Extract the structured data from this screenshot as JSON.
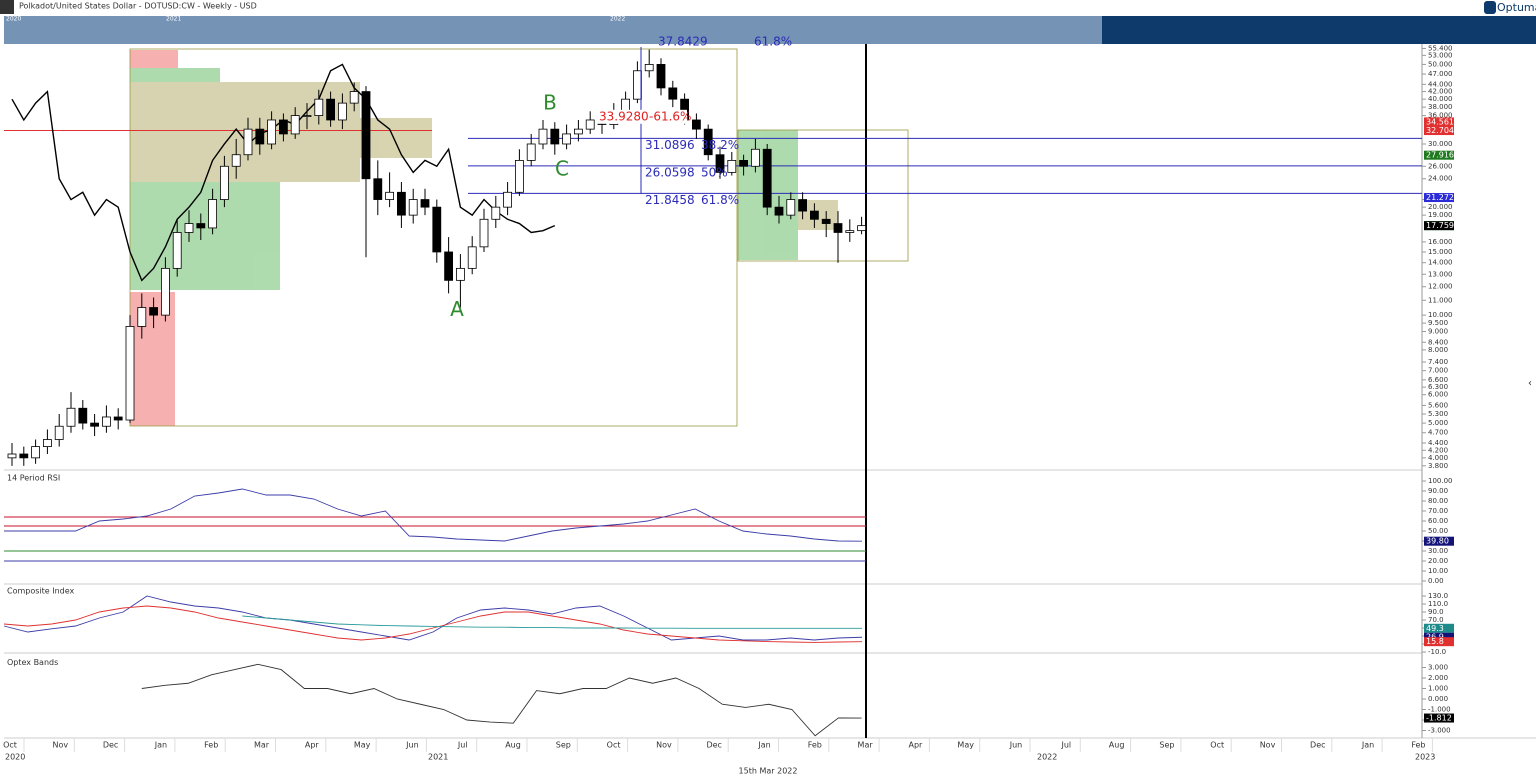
{
  "header": {
    "title": "Polkadot/United States Dollar - DOTUSD:CW - Weekly - USD",
    "brand": "Optuma",
    "navigator_years": [
      "2020",
      "2021",
      "2022"
    ]
  },
  "time_axis": {
    "months": [
      "Oct",
      "Nov",
      "Dec",
      "Jan",
      "Feb",
      "Mar",
      "Apr",
      "May",
      "Jun",
      "Jul",
      "Aug",
      "Sep",
      "Oct",
      "Nov",
      "Dec",
      "Jan",
      "Feb",
      "Mar",
      "Apr",
      "May",
      "Jun",
      "Jul",
      "Aug",
      "Sep",
      "Oct",
      "Nov",
      "Dec",
      "Jan",
      "Feb"
    ],
    "years": [
      "2020",
      "2021",
      "2022",
      "2023"
    ],
    "cursor_date": "15th Mar 2022"
  },
  "chart_data": [
    {
      "type": "candlestick",
      "log_scale": true,
      "ylim": [
        3.7,
        57
      ],
      "yticks": [
        {
          "value": 55.4,
          "label": "55.400"
        },
        {
          "value": 53,
          "label": "53.000"
        },
        {
          "value": 50,
          "label": "50.000"
        },
        {
          "value": 47,
          "label": "47.000"
        },
        {
          "value": 44,
          "label": "44.000"
        },
        {
          "value": 42,
          "label": "42.000"
        },
        {
          "value": 40,
          "label": "40.000"
        },
        {
          "value": 38,
          "label": "38.000"
        },
        {
          "value": 36,
          "label": "36.000"
        },
        {
          "value": 30,
          "label": "30.000"
        },
        {
          "value": 26,
          "label": "26.000"
        },
        {
          "value": 24,
          "label": "24.000"
        },
        {
          "value": 21,
          "label": "21.000"
        },
        {
          "value": 20,
          "label": "20.000"
        },
        {
          "value": 19,
          "label": "19.000"
        },
        {
          "value": 16,
          "label": "16.000"
        },
        {
          "value": 15,
          "label": "15.000"
        },
        {
          "value": 14,
          "label": "14.000"
        },
        {
          "value": 13,
          "label": "13.000"
        },
        {
          "value": 12,
          "label": "12.000"
        },
        {
          "value": 11,
          "label": "11.000"
        },
        {
          "value": 10,
          "label": "10.000"
        },
        {
          "value": 9.5,
          "label": "9.500"
        },
        {
          "value": 9,
          "label": "9.000"
        },
        {
          "value": 8.4,
          "label": "8.400"
        },
        {
          "value": 8,
          "label": "8.000"
        },
        {
          "value": 7.4,
          "label": "7.400"
        },
        {
          "value": 7,
          "label": "7.000"
        },
        {
          "value": 6.6,
          "label": "6.600"
        },
        {
          "value": 6.3,
          "label": "6.300"
        },
        {
          "value": 6,
          "label": "6.000"
        },
        {
          "value": 5.6,
          "label": "5.600"
        },
        {
          "value": 5.3,
          "label": "5.300"
        },
        {
          "value": 5,
          "label": "5.000"
        },
        {
          "value": 4.7,
          "label": "4.700"
        },
        {
          "value": 4.4,
          "label": "4.400"
        },
        {
          "value": 4.2,
          "label": "4.200"
        },
        {
          "value": 4,
          "label": "4.000"
        },
        {
          "value": 3.8,
          "label": "3.800"
        }
      ],
      "open": [
        4.0,
        4.1,
        4.0,
        4.3,
        4.5,
        4.9,
        5.5,
        5.0,
        4.9,
        5.2,
        5.1,
        9.3,
        10.5,
        10.0,
        13.5,
        17.0,
        18.0,
        17.5,
        21.0,
        26.0,
        28.0,
        33.0,
        30.0,
        35.0,
        32.0,
        36.0,
        36.0,
        40.0,
        35.0,
        39.0,
        42.0,
        24.0,
        21.0,
        22.0,
        19.0,
        21.0,
        20.0,
        15.0,
        12.5,
        13.5,
        15.5,
        18.5,
        20.0,
        22.0,
        27.0,
        30.0,
        33.0,
        30.0,
        32.0,
        33.0,
        35.0,
        34.0,
        37.0,
        40.0,
        48.0,
        50.0,
        43.0,
        40.0,
        35.0,
        33.0,
        28.0,
        25.0,
        27.0,
        26.0,
        29.0,
        20.0,
        19.0,
        21.0,
        19.5,
        18.5,
        18.0,
        17.0,
        17.2
      ],
      "high": [
        4.4,
        4.3,
        4.5,
        4.8,
        5.3,
        6.1,
        5.8,
        5.3,
        5.6,
        5.5,
        10.0,
        11.5,
        11.2,
        14.5,
        18.5,
        19.6,
        19.2,
        22.5,
        27.8,
        31,
        35.5,
        35.5,
        37,
        36.5,
        38,
        39,
        42.5,
        42,
        41.5,
        44.5,
        43.5,
        27,
        25,
        23.5,
        22.5,
        22.5,
        21,
        16.5,
        14.8,
        16.6,
        19.8,
        21.5,
        23.5,
        29,
        32,
        35,
        34.5,
        34,
        35,
        37,
        36.5,
        39,
        42,
        51,
        55,
        52,
        45,
        41.5,
        36.5,
        34,
        29.5,
        28.5,
        28,
        31,
        30,
        21.5,
        22,
        22,
        20.5,
        19.5,
        19.5,
        18.5,
        18.8
      ],
      "low": [
        3.8,
        3.8,
        3.85,
        4.1,
        4.3,
        4.7,
        4.8,
        4.6,
        4.7,
        4.8,
        5.0,
        8.6,
        9.2,
        9.6,
        12.8,
        16,
        16.2,
        16.8,
        20,
        24,
        27,
        28,
        29,
        30.5,
        31,
        33,
        34,
        33.5,
        33,
        37,
        14.5,
        19,
        20,
        17.5,
        18,
        19,
        14,
        11.5,
        10.5,
        13,
        15,
        17.5,
        19,
        21.5,
        26,
        29,
        28,
        29,
        30.5,
        32,
        32,
        33,
        36,
        39,
        46,
        41,
        38,
        34,
        31,
        27,
        24,
        24.5,
        24.5,
        25,
        19,
        18,
        18.5,
        18.5,
        17.5,
        16.5,
        14,
        16,
        16.8
      ],
      "close": [
        4.1,
        4.0,
        4.3,
        4.5,
        4.9,
        5.5,
        5.0,
        4.9,
        5.2,
        5.1,
        9.3,
        10.5,
        10.0,
        13.5,
        17.0,
        18.0,
        17.5,
        21.0,
        26.0,
        28.0,
        33.0,
        30.0,
        35.0,
        32.0,
        36.0,
        36.0,
        40.0,
        35.0,
        39.0,
        42.0,
        24.0,
        21.0,
        22.0,
        19.0,
        21.0,
        20.0,
        15.0,
        12.5,
        13.5,
        15.5,
        18.5,
        20.0,
        22.0,
        27.0,
        30.0,
        33.0,
        30.0,
        32.0,
        33.0,
        35.0,
        34.0,
        37.0,
        40.0,
        48.0,
        50.0,
        43.0,
        40.0,
        35.0,
        33.0,
        28.0,
        25.0,
        27.0,
        26.0,
        29.0,
        20.0,
        19.0,
        21.0,
        19.5,
        18.5,
        18.0,
        17.0,
        17.2,
        17.76
      ],
      "lagging_span": {
        "color": "#000000",
        "values": [
          40,
          35,
          39,
          42,
          24,
          21,
          22,
          19,
          21,
          20,
          15,
          12.5,
          13.5,
          15.5,
          18.5,
          20,
          22,
          27,
          30,
          33,
          30,
          32,
          33,
          35,
          34,
          37,
          40,
          48,
          50,
          43,
          40,
          35,
          33,
          28,
          25,
          27,
          26,
          29,
          20,
          19,
          21,
          19.5,
          18.5,
          18,
          17,
          17.2,
          17.76
        ]
      },
      "levels": [
        {
          "value": 32.704,
          "color": "#e03030"
        },
        {
          "value": 31.0896,
          "color": "#2b2bb8"
        },
        {
          "value": 26.0598,
          "color": "#2b2bb8"
        },
        {
          "value": 21.8458,
          "color": "#2b2bb8"
        }
      ],
      "fib_labels": [
        {
          "value": 33.928,
          "label": "33.9280",
          "ratio": "-61.6%",
          "color": "#e02020"
        },
        {
          "value": 31.0896,
          "label": "31.0896",
          "ratio": "38.2%",
          "color": "#2b2bb8"
        },
        {
          "value": 26.0598,
          "label": "26.0598",
          "ratio": "50%",
          "color": "#2b2bb8"
        },
        {
          "value": 21.8458,
          "label": "21.8458",
          "ratio": "61.8%",
          "color": "#2b2bb8"
        }
      ],
      "clipped_label": {
        "label": "37.8429",
        "ratio": "61.8%"
      },
      "annotations": [
        {
          "text": "A",
          "value": 10.3
        },
        {
          "text": "B",
          "value": 38.8
        },
        {
          "text": "C",
          "value": 25.4
        }
      ],
      "tags": [
        {
          "value": 34.561,
          "color": "#e03030"
        },
        {
          "value": 32.704,
          "color": "#e03030"
        },
        {
          "value": 27.916,
          "color": "#1f7a1f"
        },
        {
          "value": 21.272,
          "color": "#2b2bd8"
        },
        {
          "value": 17.759,
          "color": "#22cc22"
        },
        {
          "value": 17.759,
          "color": "#000000"
        }
      ]
    },
    {
      "type": "line",
      "title": "14 Period RSI",
      "ylim": [
        0,
        100
      ],
      "yticks": [
        {
          "value": 100,
          "label": "100.00"
        },
        {
          "value": 90,
          "label": "90.00"
        },
        {
          "value": 80,
          "label": "80.00"
        },
        {
          "value": 70,
          "label": "70.00"
        },
        {
          "value": 60,
          "label": "60.00"
        },
        {
          "value": 50,
          "label": "50.00"
        },
        {
          "value": 40,
          "label": "40.00"
        },
        {
          "value": 30,
          "label": "30.00"
        },
        {
          "value": 20,
          "label": "20.00"
        },
        {
          "value": 10,
          "label": "10.00"
        },
        {
          "value": 0,
          "label": "0.00"
        }
      ],
      "series": [
        {
          "color": "#3c3ca8",
          "values": [
            50,
            50,
            50,
            50,
            60,
            62,
            65,
            72,
            85,
            88,
            92,
            86,
            86,
            82,
            72,
            65,
            70,
            45,
            44,
            42,
            41,
            40,
            45,
            50,
            53,
            55,
            57,
            60,
            66,
            72,
            60,
            50,
            47,
            45,
            42,
            40,
            39.8
          ]
        }
      ],
      "levels": [
        {
          "value": 64,
          "color": "#c8102e"
        },
        {
          "value": 55,
          "color": "#c8102e"
        },
        {
          "value": 30,
          "color": "#2e8b2e"
        },
        {
          "value": 20,
          "color": "#3c3ca8"
        }
      ],
      "tags": [
        {
          "value": 39.8,
          "label": "39.80",
          "color": "#141478"
        }
      ]
    },
    {
      "type": "line",
      "title": "Composite Index",
      "ylim": [
        -10,
        130
      ],
      "yticks": [
        {
          "value": 130,
          "label": "130.0"
        },
        {
          "value": 110,
          "label": "110.0"
        },
        {
          "value": 90,
          "label": "90.0"
        },
        {
          "value": 70,
          "label": "70.0"
        },
        {
          "value": 50,
          "label": "50.0"
        },
        {
          "value": 30,
          "label": "30.0"
        },
        {
          "value": 10,
          "label": "10.0"
        },
        {
          "value": -10,
          "label": "-10.0"
        }
      ],
      "series": [
        {
          "color": "#3c3ca8",
          "values": [
            55,
            40,
            48,
            55,
            75,
            90,
            130,
            115,
            105,
            100,
            90,
            75,
            70,
            60,
            50,
            40,
            30,
            20,
            40,
            75,
            95,
            100,
            95,
            85,
            100,
            105,
            80,
            50,
            20,
            25,
            30,
            20,
            20,
            25,
            20,
            25,
            26.9
          ]
        },
        {
          "color": "#e03030",
          "values": [
            60,
            55,
            60,
            70,
            90,
            100,
            105,
            100,
            90,
            75,
            65,
            55,
            45,
            35,
            25,
            20,
            25,
            35,
            50,
            65,
            80,
            90,
            90,
            80,
            70,
            60,
            45,
            35,
            30,
            25,
            20,
            18,
            16,
            15,
            14,
            15,
            15.8
          ]
        },
        {
          "color": "#2a9a9a",
          "values": [
            null,
            null,
            null,
            null,
            null,
            null,
            null,
            null,
            null,
            null,
            80,
            75,
            70,
            65,
            60,
            58,
            56,
            55,
            54,
            53,
            52,
            52,
            51,
            51,
            50,
            50,
            50,
            49.5,
            49.5,
            49.3,
            49.3,
            49.3,
            49.3,
            49.3,
            49.3,
            49.3,
            49.3
          ]
        }
      ],
      "tags": [
        {
          "value": 49.3,
          "color": "#1e8a8a"
        },
        {
          "value": 26.9,
          "color": "#141478"
        },
        {
          "value": 15.8,
          "color": "#e03030"
        }
      ]
    },
    {
      "type": "line",
      "title": "Optex Bands",
      "ylim": [
        -3,
        3
      ],
      "yticks": [
        {
          "value": 3,
          "label": "3.000"
        },
        {
          "value": 2,
          "label": "2.000"
        },
        {
          "value": 1,
          "label": "1.000"
        },
        {
          "value": 0,
          "label": "0.000"
        },
        {
          "value": -1,
          "label": "-1.000"
        },
        {
          "value": -2,
          "label": "-2.000"
        },
        {
          "value": -3,
          "label": "-3.000"
        }
      ],
      "series": [
        {
          "color": "#333333",
          "start": 11,
          "values": [
            1.0,
            1.3,
            1.5,
            2.3,
            2.8,
            3.3,
            2.8,
            1.0,
            1.0,
            0.5,
            1.0,
            0.0,
            -0.5,
            -1.0,
            -2.0,
            -2.2,
            -2.3,
            0.8,
            0.5,
            1.0,
            1.0,
            2.0,
            1.5,
            2.0,
            1.0,
            -0.5,
            -0.8,
            -0.5,
            -1.0,
            -3.5,
            -1.8,
            -1.812
          ]
        }
      ],
      "tags": [
        {
          "value": -1.812,
          "color": "#000000"
        }
      ]
    }
  ]
}
